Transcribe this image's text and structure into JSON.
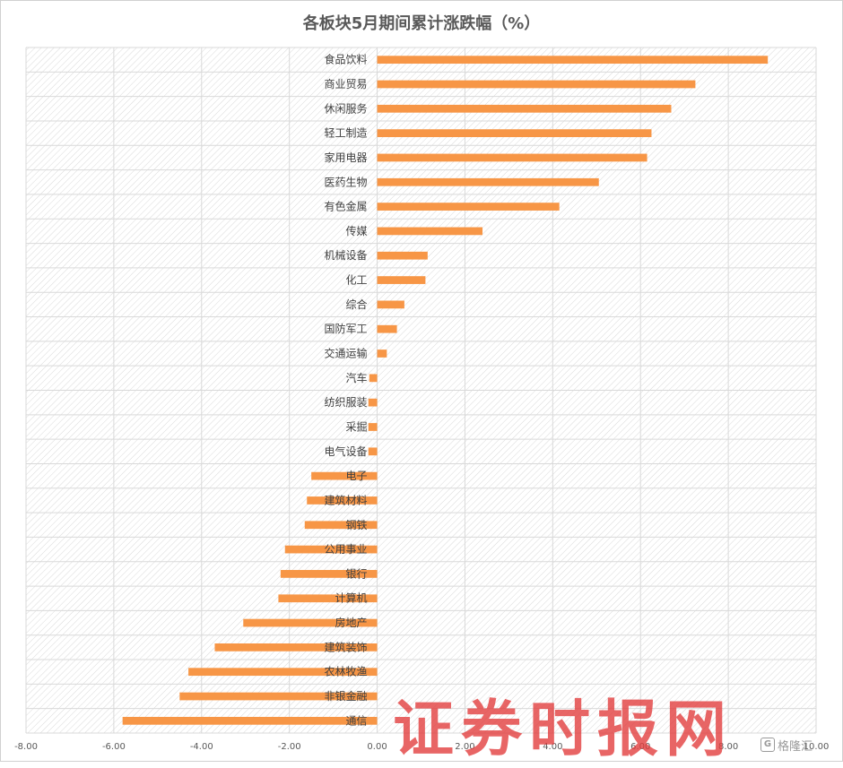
{
  "chart_data": {
    "type": "bar",
    "orientation": "horizontal",
    "title": "各板块5月期间累计涨跌幅（%）",
    "categories": [
      "食品饮料",
      "商业贸易",
      "休闲服务",
      "轻工制造",
      "家用电器",
      "医药生物",
      "有色金属",
      "传媒",
      "机械设备",
      "化工",
      "综合",
      "国防军工",
      "交通运输",
      "汽车",
      "纺织服装",
      "采掘",
      "电气设备",
      "电子",
      "建筑材料",
      "钢铁",
      "公用事业",
      "银行",
      "计算机",
      "房地产",
      "建筑装饰",
      "农林牧渔",
      "非银金融",
      "通信"
    ],
    "values": [
      8.9,
      7.25,
      6.7,
      6.25,
      6.15,
      5.05,
      4.15,
      2.4,
      1.15,
      1.1,
      0.62,
      0.45,
      0.22,
      -0.18,
      -0.2,
      -0.2,
      -0.2,
      -1.5,
      -1.6,
      -1.65,
      -2.1,
      -2.2,
      -2.25,
      -3.05,
      -3.7,
      -4.3,
      -4.5,
      -5.8
    ],
    "xlim": [
      -8,
      10
    ],
    "x_ticks": [
      "-8.00",
      "-6.00",
      "-4.00",
      "-2.00",
      "0.00",
      "2.00",
      "4.00",
      "6.00",
      "8.00",
      "10.00"
    ],
    "bar_color": "#f79646",
    "grid": true,
    "xlabel": "",
    "ylabel": ""
  },
  "watermark": "证券时报网",
  "logo": {
    "mark": "G",
    "text": "格隆汇"
  }
}
